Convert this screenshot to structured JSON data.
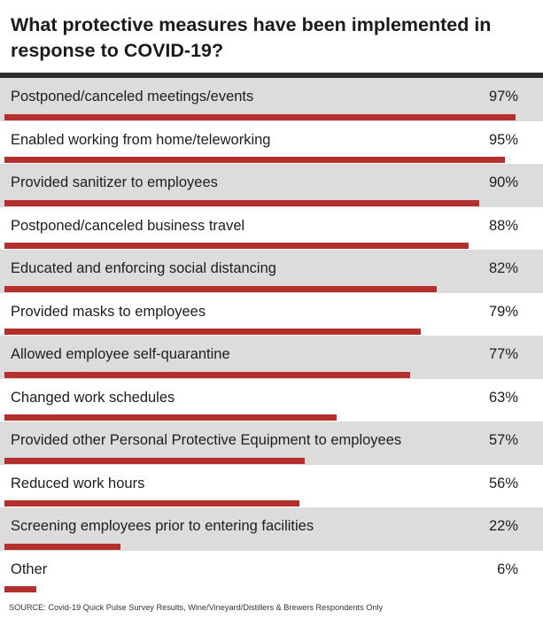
{
  "title": "What protective measures have been implemented in response to COVID-19?",
  "source": "SOURCE: Covid-19 Quick Pulse Survey Results, Wine/Vineyard/Distillers & Brewers Respondents Only",
  "colors": {
    "bar": "#b5302c",
    "shaded_row": "#dcdcdc",
    "rule": "#2b2b2b"
  },
  "chart_data": {
    "type": "bar",
    "orientation": "horizontal",
    "title": "What protective measures have been implemented in response to COVID-19?",
    "xlim": [
      0,
      100
    ],
    "categories": [
      "Postponed/canceled meetings/events",
      "Enabled working from home/teleworking",
      "Provided sanitizer to employees",
      "Postponed/canceled business travel",
      "Educated and enforcing social distancing",
      "Provided masks to employees",
      "Allowed employee self-quarantine",
      "Changed work schedules",
      "Provided other Personal Protective Equipment to employees",
      "Reduced work hours",
      "Screening employees prior to entering facilities",
      "Other"
    ],
    "values": [
      97,
      95,
      90,
      88,
      82,
      79,
      77,
      63,
      57,
      56,
      22,
      6
    ],
    "value_labels": [
      "97%",
      "95%",
      "90%",
      "88%",
      "82%",
      "79%",
      "77%",
      "63%",
      "57%",
      "56%",
      "22%",
      "6%"
    ]
  }
}
